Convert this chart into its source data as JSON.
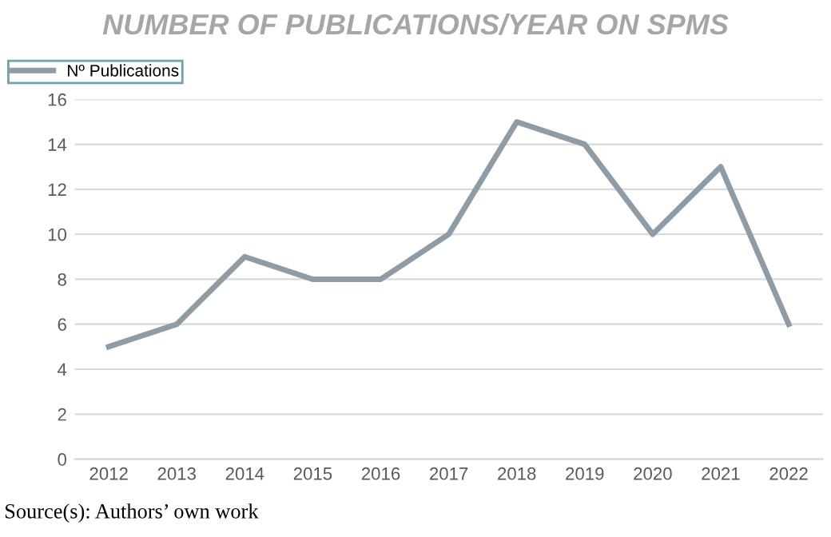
{
  "chart_data": {
    "type": "line",
    "title": "NUMBER OF PUBLICATIONS/YEAR ON SPMS",
    "categories": [
      "2012",
      "2013",
      "2014",
      "2015",
      "2016",
      "2017",
      "2018",
      "2019",
      "2020",
      "2021",
      "2022"
    ],
    "series": [
      {
        "name": "Nº Publications",
        "color": "#8d9ca6",
        "values": [
          5,
          6,
          9,
          8,
          8,
          10,
          15,
          14,
          10,
          13,
          6
        ]
      }
    ],
    "ylim": [
      0,
      16
    ],
    "yticks": [
      0,
      2,
      4,
      6,
      8,
      10,
      12,
      14,
      16
    ],
    "grid": "y",
    "legend": "top left",
    "marker": "none",
    "line_style": "solid",
    "annotations": [
      "Source(s): Authors’ own work"
    ]
  }
}
